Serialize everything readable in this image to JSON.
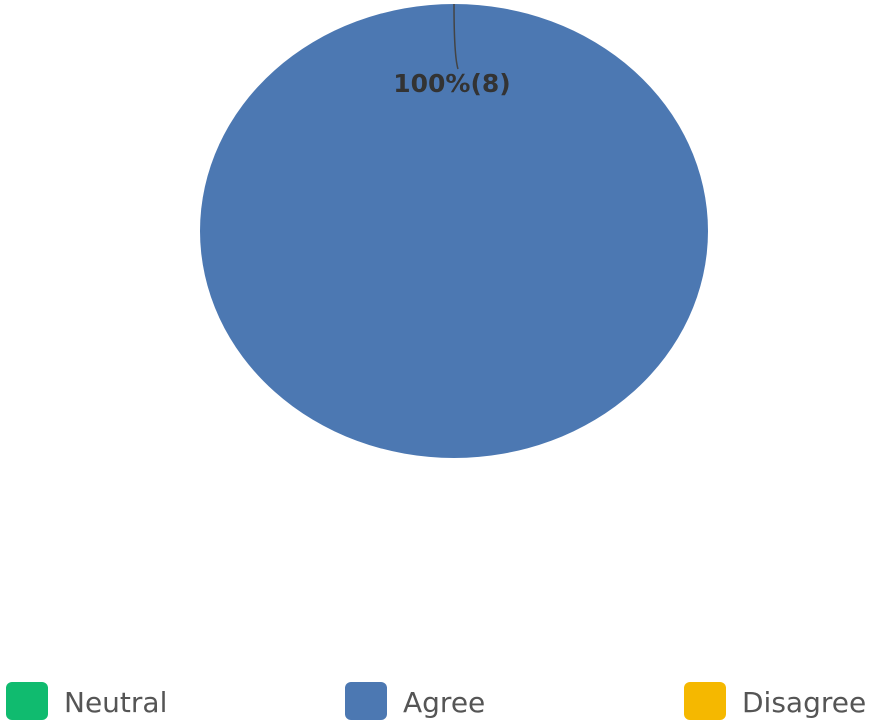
{
  "chart_data": {
    "type": "pie",
    "categories": [
      "Neutral",
      "Agree",
      "Disagree"
    ],
    "values": [
      0,
      8,
      0
    ],
    "colors": [
      "#10bb6f",
      "#4c78b2",
      "#f5b800"
    ],
    "data_labels": [
      {
        "category": "Agree",
        "text": "100%(8)"
      }
    ],
    "legend": {
      "placement": "bottom",
      "entries": [
        "Neutral",
        "Agree",
        "Disagree"
      ]
    }
  }
}
